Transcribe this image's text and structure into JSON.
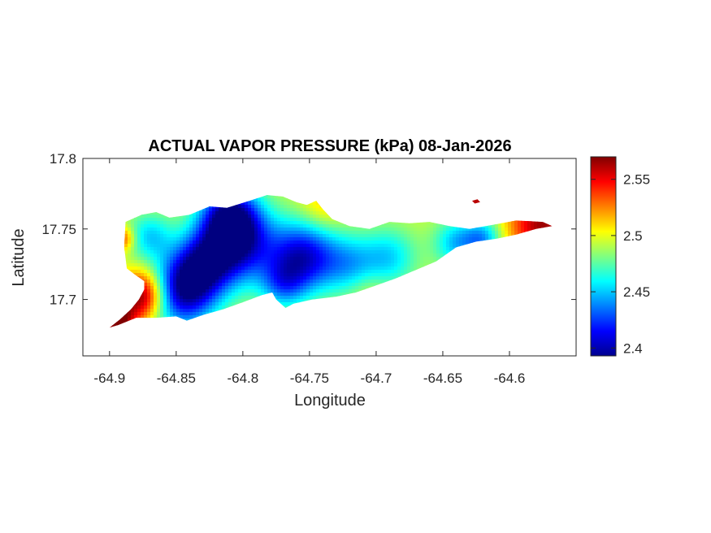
{
  "chart_data": {
    "type": "heatmap",
    "title": "ACTUAL VAPOR PRESSURE (kPa) 08-Jan-2026",
    "xlabel": "Longitude",
    "ylabel": "Latitude",
    "xlim": [
      -64.92,
      -64.55
    ],
    "ylim": [
      17.66,
      17.8
    ],
    "xticks": [
      -64.9,
      -64.85,
      -64.8,
      -64.75,
      -64.7,
      -64.65,
      -64.6
    ],
    "xtick_labels": [
      "-64.9",
      "-64.85",
      "-64.8",
      "-64.75",
      "-64.7",
      "-64.65",
      "-64.6"
    ],
    "yticks": [
      17.7,
      17.75,
      17.8
    ],
    "ytick_labels": [
      "17.7",
      "17.75",
      "17.8"
    ],
    "colormap": "jet",
    "clim": [
      2.393,
      2.57
    ],
    "colorbar_ticks": [
      2.4,
      2.45,
      2.5,
      2.55
    ],
    "colorbar_tick_labels": [
      "2.4",
      "2.45",
      "2.5",
      "2.55"
    ],
    "grid": false,
    "island_outline": [
      [
        -64.9,
        17.68
      ],
      [
        -64.892,
        17.686
      ],
      [
        -64.884,
        17.693
      ],
      [
        -64.878,
        17.7
      ],
      [
        -64.874,
        17.707
      ],
      [
        -64.874,
        17.713
      ],
      [
        -64.88,
        17.717
      ],
      [
        -64.887,
        17.722
      ],
      [
        -64.889,
        17.737
      ],
      [
        -64.888,
        17.755
      ],
      [
        -64.876,
        17.76
      ],
      [
        -64.865,
        17.762
      ],
      [
        -64.855,
        17.758
      ],
      [
        -64.84,
        17.76
      ],
      [
        -64.825,
        17.766
      ],
      [
        -64.812,
        17.765
      ],
      [
        -64.795,
        17.77
      ],
      [
        -64.782,
        17.774
      ],
      [
        -64.77,
        17.773
      ],
      [
        -64.76,
        17.769
      ],
      [
        -64.752,
        17.767
      ],
      [
        -64.745,
        17.77
      ],
      [
        -64.74,
        17.764
      ],
      [
        -64.733,
        17.757
      ],
      [
        -64.72,
        17.752
      ],
      [
        -64.705,
        17.75
      ],
      [
        -64.69,
        17.755
      ],
      [
        -64.675,
        17.754
      ],
      [
        -64.66,
        17.755
      ],
      [
        -64.645,
        17.752
      ],
      [
        -64.63,
        17.75
      ],
      [
        -64.612,
        17.753
      ],
      [
        -64.595,
        17.756
      ],
      [
        -64.575,
        17.755
      ],
      [
        -64.568,
        17.752
      ],
      [
        -64.58,
        17.75
      ],
      [
        -64.595,
        17.746
      ],
      [
        -64.61,
        17.743
      ],
      [
        -64.625,
        17.741
      ],
      [
        -64.64,
        17.737
      ],
      [
        -64.655,
        17.727
      ],
      [
        -64.67,
        17.721
      ],
      [
        -64.685,
        17.715
      ],
      [
        -64.7,
        17.71
      ],
      [
        -64.715,
        17.705
      ],
      [
        -64.73,
        17.702
      ],
      [
        -64.748,
        17.7
      ],
      [
        -64.762,
        17.697
      ],
      [
        -64.768,
        17.694
      ],
      [
        -64.775,
        17.7
      ],
      [
        -64.778,
        17.705
      ],
      [
        -64.786,
        17.703
      ],
      [
        -64.8,
        17.698
      ],
      [
        -64.815,
        17.693
      ],
      [
        -64.83,
        17.689
      ],
      [
        -64.842,
        17.685
      ],
      [
        -64.85,
        17.688
      ],
      [
        -64.865,
        17.687
      ],
      [
        -64.88,
        17.687
      ],
      [
        -64.893,
        17.682
      ]
    ],
    "islet_outline": [
      [
        -64.628,
        17.77
      ],
      [
        -64.624,
        17.771
      ],
      [
        -64.622,
        17.769
      ],
      [
        -64.626,
        17.768
      ]
    ],
    "field_base": 2.495,
    "field_anomalies": [
      {
        "lon": -64.875,
        "lat": 17.703,
        "amp": 0.085,
        "sigma": 0.012
      },
      {
        "lon": -64.895,
        "lat": 17.685,
        "amp": 0.08,
        "sigma": 0.01
      },
      {
        "lon": -64.89,
        "lat": 17.743,
        "amp": 0.045,
        "sigma": 0.006
      },
      {
        "lon": -64.575,
        "lat": 17.753,
        "amp": 0.07,
        "sigma": 0.018
      },
      {
        "lon": -64.624,
        "lat": 17.77,
        "amp": 0.06,
        "sigma": 0.005
      },
      {
        "lon": -64.74,
        "lat": 17.766,
        "amp": 0.02,
        "sigma": 0.012
      },
      {
        "lon": -64.705,
        "lat": 17.707,
        "amp": 0.01,
        "sigma": 0.01
      },
      {
        "lon": -64.845,
        "lat": 17.705,
        "amp": -0.09,
        "sigma": 0.018
      },
      {
        "lon": -64.805,
        "lat": 17.74,
        "amp": -0.09,
        "sigma": 0.02
      },
      {
        "lon": -64.81,
        "lat": 17.76,
        "amp": -0.07,
        "sigma": 0.015
      },
      {
        "lon": -64.755,
        "lat": 17.73,
        "amp": -0.085,
        "sigma": 0.018
      },
      {
        "lon": -64.83,
        "lat": 17.725,
        "amp": -0.06,
        "sigma": 0.016
      },
      {
        "lon": -64.77,
        "lat": 17.71,
        "amp": -0.04,
        "sigma": 0.012
      },
      {
        "lon": -64.72,
        "lat": 17.725,
        "amp": -0.04,
        "sigma": 0.015
      },
      {
        "lon": -64.69,
        "lat": 17.73,
        "amp": -0.04,
        "sigma": 0.015
      },
      {
        "lon": -64.64,
        "lat": 17.74,
        "amp": -0.045,
        "sigma": 0.012
      },
      {
        "lon": -64.62,
        "lat": 17.743,
        "amp": -0.05,
        "sigma": 0.01
      },
      {
        "lon": -64.87,
        "lat": 17.745,
        "amp": -0.04,
        "sigma": 0.012
      }
    ]
  }
}
